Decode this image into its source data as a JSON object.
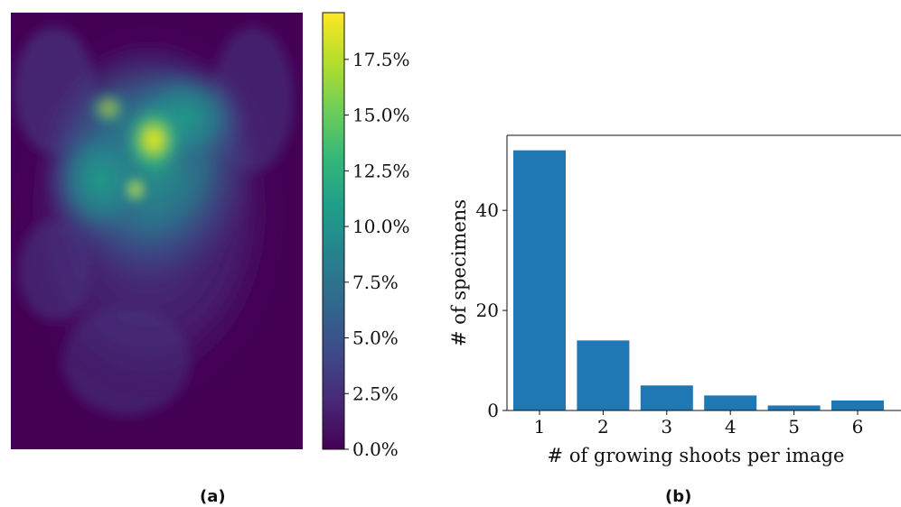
{
  "captions": {
    "a": "(a)",
    "b": "(b)"
  },
  "chart_data": [
    {
      "type": "heatmap",
      "panel": "a",
      "colormap": "viridis",
      "colors": {
        "background": "#440154",
        "stops": [
          "#440154",
          "#482878",
          "#3e4a89",
          "#31688e",
          "#26828e",
          "#1f9e89",
          "#35b779",
          "#6ece58",
          "#b5de2b",
          "#fde725"
        ]
      },
      "colorbar": {
        "min": 0.0,
        "max": 19.6,
        "unit": "%",
        "ticks": [
          0.0,
          2.5,
          5.0,
          7.5,
          10.0,
          12.5,
          15.0,
          17.5
        ],
        "tick_labels": [
          "0.0%",
          "2.5%",
          "5.0%",
          "7.5%",
          "10.0%",
          "12.5%",
          "15.0%",
          "17.5%"
        ]
      },
      "description_values": {
        "peak_percent": 19.6
      }
    },
    {
      "type": "bar",
      "panel": "b",
      "categories": [
        "1",
        "2",
        "3",
        "4",
        "5",
        "6"
      ],
      "values": [
        52,
        14,
        5,
        3,
        1,
        2
      ],
      "xlabel": "# of growing shoots per image",
      "ylabel": "# of specimens",
      "ylim": [
        0,
        55
      ],
      "yticks": [
        0,
        20,
        40
      ],
      "ytick_labels": [
        "0",
        "20",
        "40"
      ],
      "bar_color": "#1f77b4",
      "grid": false
    }
  ]
}
